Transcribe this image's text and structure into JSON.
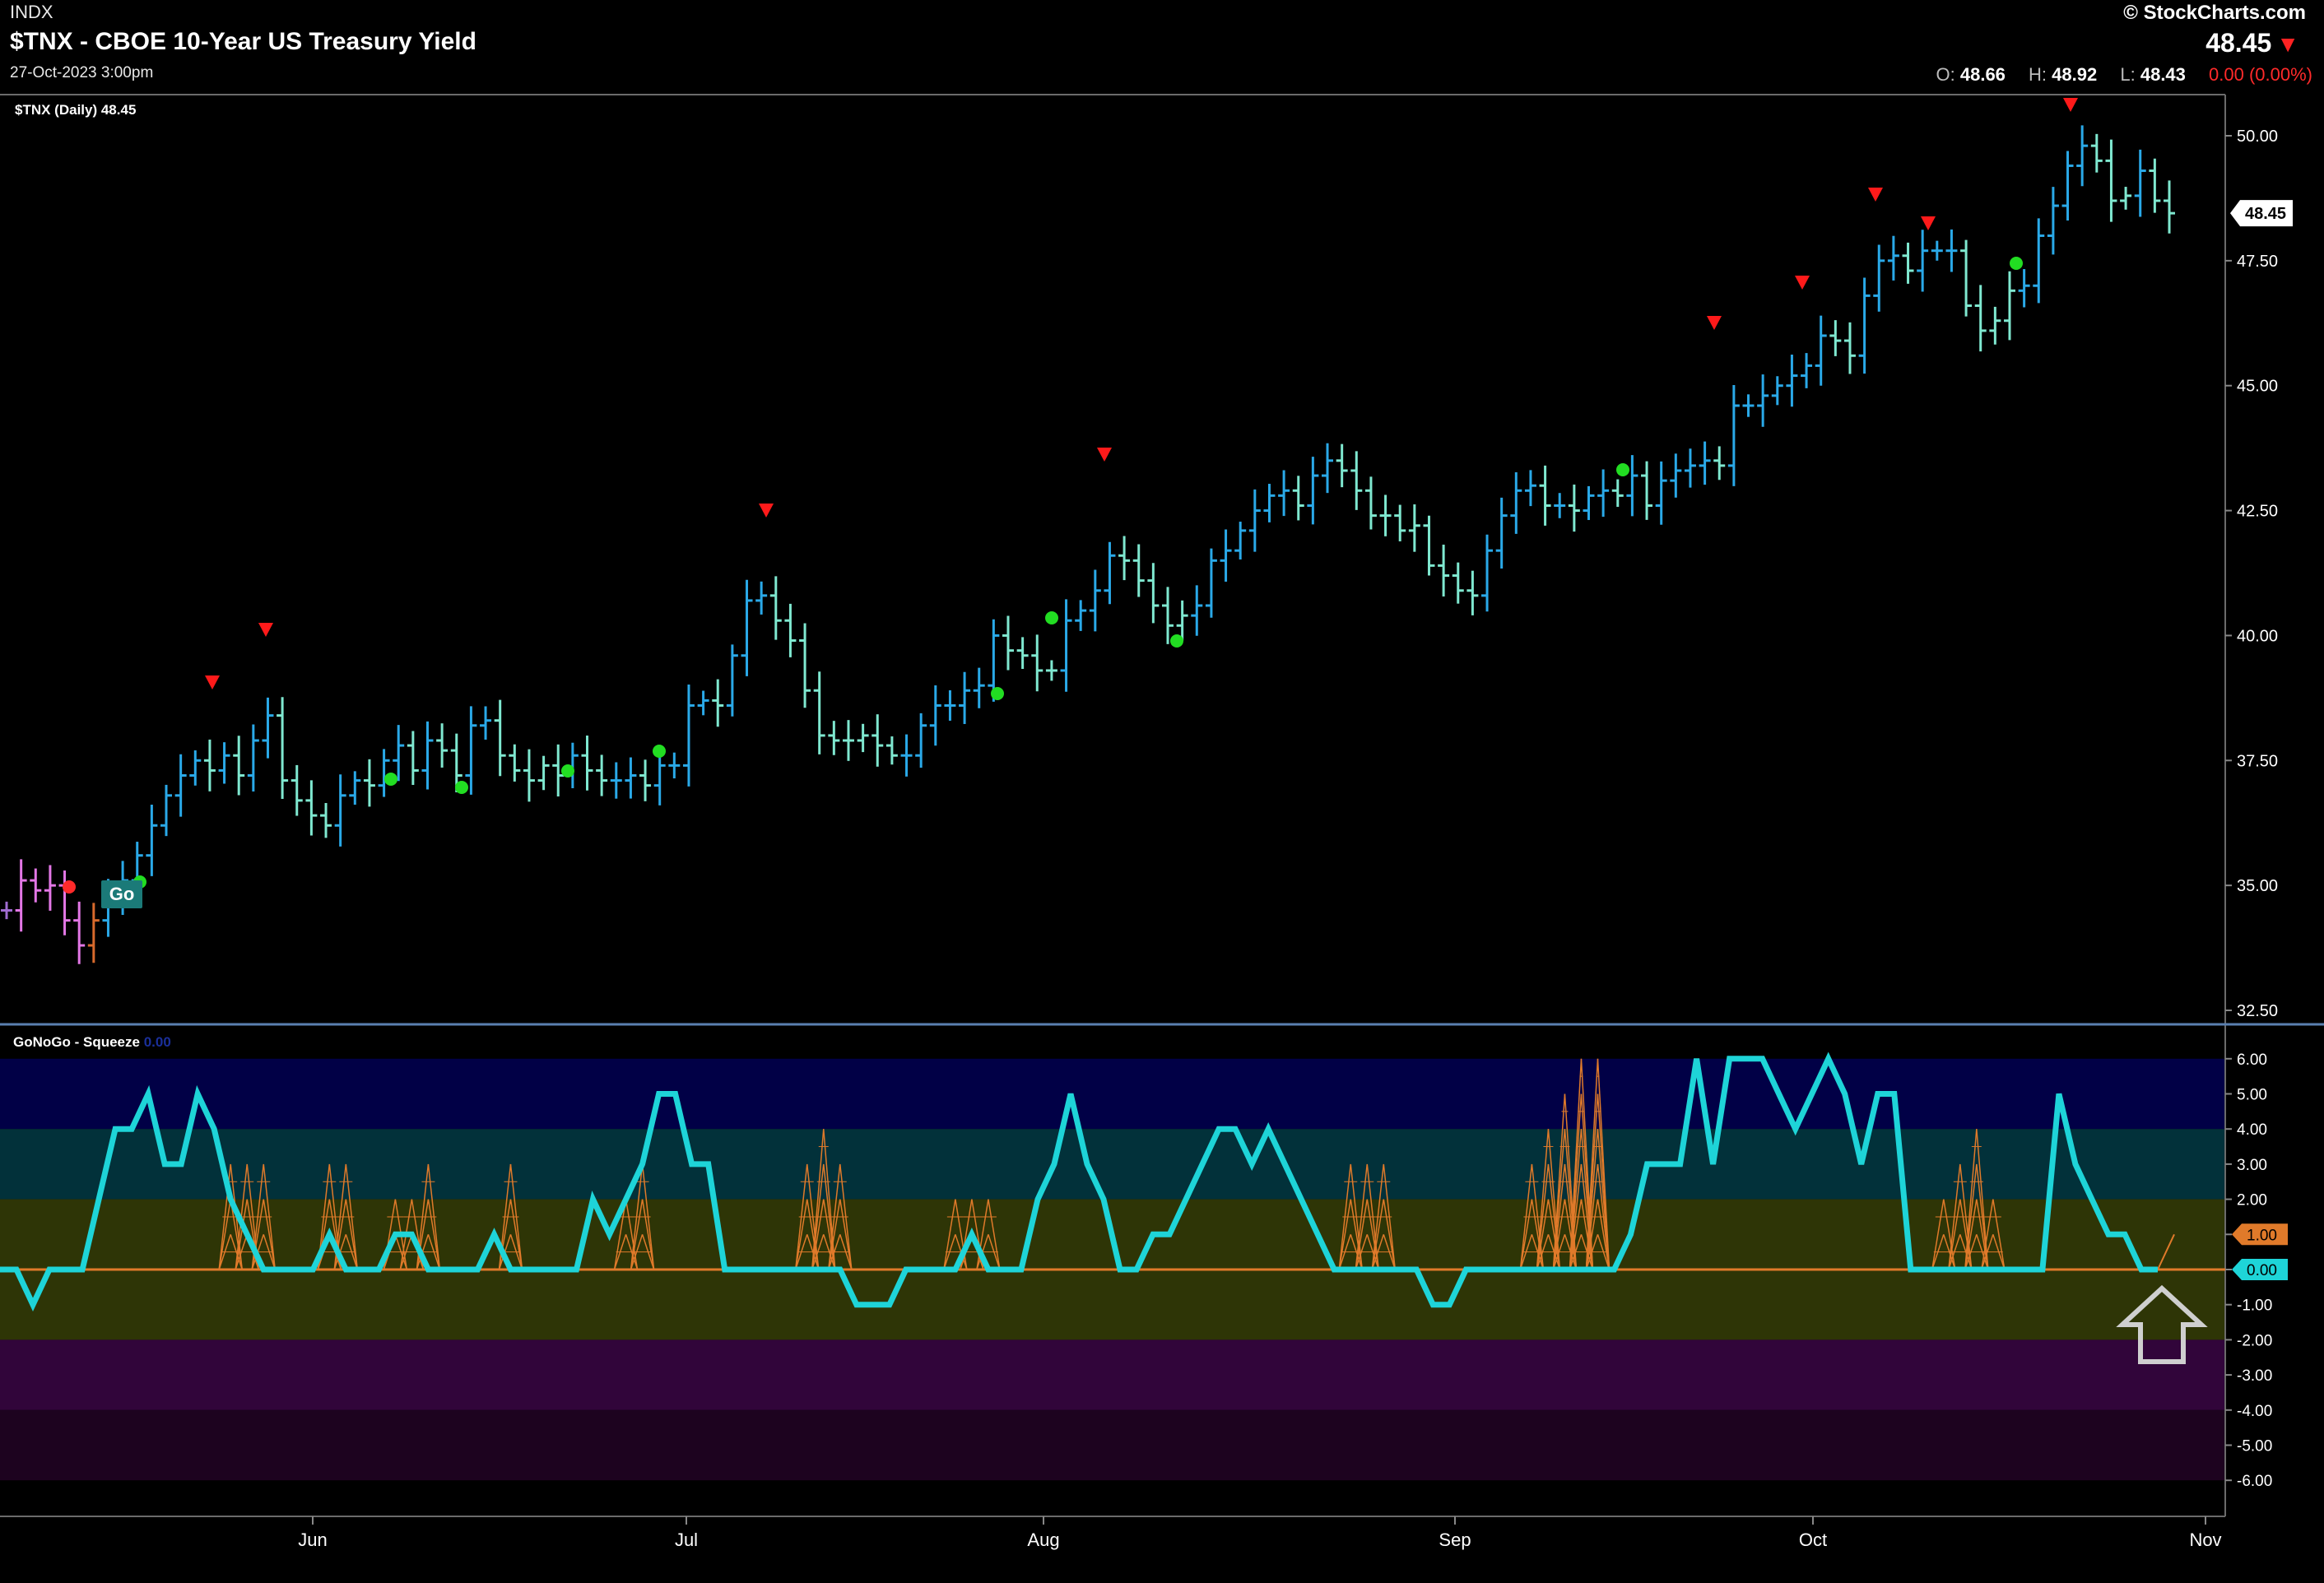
{
  "header": {
    "exchange": "INDX",
    "title": "$TNX - CBOE 10-Year US Treasury Yield",
    "datetime": "27-Oct-2023 3:00pm",
    "brand": "© StockCharts.com",
    "last_price": "48.45",
    "ohlc": {
      "o_label": "O:",
      "o": "48.66",
      "h_label": "H:",
      "h": "48.92",
      "l_label": "L:",
      "l": "48.43",
      "change": "0.00 (0.00%)"
    }
  },
  "price_panel": {
    "label": "$TNX (Daily) 48.45",
    "last_tag": "48.45",
    "go_badge": "Go",
    "colors": {
      "strong_go": "#2aa9e8",
      "weak_go": "#7fe8d0",
      "no_go": "#e377e6",
      "nogo_weak": "#a06cd0",
      "neutral": "#d86a2c",
      "down_triangle": "#ff1a1a",
      "go_dot": "#22dd22",
      "nogo_dot": "#ff2a2a"
    }
  },
  "oscillator_panel": {
    "label": "GoNoGo - Squeeze",
    "label_suffix": "0.00",
    "tag_orange": "1.00",
    "tag_cyan": "0.00",
    "colors": {
      "line": "#1ed4d8",
      "squeeze": "#e07a2a",
      "zero_line": "#e07a2a"
    }
  },
  "x_axis": {
    "labels": [
      "Jun",
      "Jul",
      "Aug",
      "Sep",
      "Oct",
      "Nov"
    ]
  },
  "chart_data": [
    {
      "type": "ohlc",
      "title": "$TNX - CBOE 10-Year US Treasury Yield",
      "series_name": "$TNX (Daily)",
      "ylim": [
        32.5,
        50.75
      ],
      "y_ticks": [
        "32.50",
        "35.00",
        "37.50",
        "40.00",
        "42.50",
        "45.00",
        "47.50",
        "50.00"
      ],
      "x_ticks": [
        "Jun",
        "Jul",
        "Aug",
        "Sep",
        "Oct",
        "Nov"
      ],
      "bars_close": [
        34.5,
        35.1,
        34.9,
        35.0,
        34.3,
        33.8,
        34.3,
        34.8,
        35.1,
        35.6,
        36.2,
        36.8,
        37.2,
        37.5,
        37.3,
        37.6,
        37.2,
        37.9,
        38.4,
        37.1,
        36.7,
        36.4,
        36.2,
        36.8,
        37.1,
        37.0,
        37.5,
        37.8,
        37.3,
        37.9,
        37.7,
        37.2,
        38.2,
        38.3,
        37.6,
        37.3,
        37.1,
        37.4,
        37.2,
        37.6,
        37.3,
        37.1,
        37.1,
        37.2,
        37.0,
        37.4,
        37.4,
        38.6,
        38.7,
        38.6,
        39.6,
        40.7,
        40.8,
        40.3,
        39.9,
        38.9,
        38.0,
        37.9,
        37.9,
        38.0,
        37.8,
        37.6,
        37.6,
        38.2,
        38.6,
        38.6,
        38.9,
        39.0,
        40.0,
        39.7,
        39.6,
        39.3,
        39.3,
        40.3,
        40.5,
        40.9,
        41.6,
        41.5,
        41.1,
        40.6,
        40.2,
        40.4,
        40.6,
        41.5,
        41.7,
        42.1,
        42.5,
        42.8,
        42.9,
        42.6,
        43.2,
        43.5,
        43.3,
        42.9,
        42.4,
        42.4,
        42.1,
        42.2,
        41.4,
        41.2,
        40.9,
        40.8,
        41.7,
        42.4,
        42.9,
        43.0,
        42.6,
        42.6,
        42.5,
        42.8,
        42.9,
        42.8,
        43.2,
        42.6,
        43.1,
        43.3,
        43.4,
        43.5,
        43.4,
        44.6,
        44.6,
        44.8,
        45.0,
        45.2,
        45.4,
        46.0,
        45.9,
        45.6,
        46.8,
        47.5,
        47.6,
        47.3,
        47.7,
        47.7,
        47.7,
        46.6,
        46.1,
        46.3,
        46.9,
        47.0,
        48.0,
        48.6,
        49.4,
        49.8,
        49.5,
        48.7,
        48.8,
        49.3,
        48.7,
        48.45
      ],
      "go_dots": [
        "May-26",
        "Jun-07",
        "Jun-14",
        "Jun-22",
        "Jun-28",
        "Jul-25",
        "Aug-01",
        "Aug-09",
        "Sep-15",
        "Oct-18"
      ],
      "down_triangles": [
        "May-19",
        "May-26",
        "Jul-05",
        "Aug-04",
        "Sep-21",
        "Sep-27",
        "Oct-05",
        "Oct-10",
        "Oct-19"
      ]
    },
    {
      "type": "line",
      "title": "GoNoGo - Squeeze",
      "ylim": [
        -7,
        7
      ],
      "y_ticks": [
        "6.00",
        "5.00",
        "4.00",
        "3.00",
        "2.00",
        "1.00",
        "0.00",
        "-1.00",
        "-2.00",
        "-3.00",
        "-4.00",
        "-5.00",
        "-6.00"
      ],
      "oscillator": [
        0,
        0,
        -1,
        0,
        0,
        0,
        2,
        4,
        4,
        5,
        3,
        3,
        5,
        4,
        2,
        1,
        0,
        0,
        0,
        0,
        1,
        0,
        0,
        0,
        1,
        1,
        0,
        0,
        0,
        0,
        1,
        0,
        0,
        0,
        0,
        0,
        2,
        1,
        2,
        3,
        5,
        5,
        3,
        3,
        0,
        0,
        0,
        0,
        0,
        0,
        0,
        0,
        -1,
        -1,
        -1,
        0,
        0,
        0,
        0,
        1,
        0,
        0,
        0,
        2,
        3,
        5,
        3,
        2,
        0,
        0,
        1,
        1,
        2,
        3,
        4,
        4,
        3,
        4,
        3,
        2,
        1,
        0,
        0,
        0,
        0,
        0,
        0,
        -1,
        -1,
        0,
        0,
        0,
        0,
        0,
        0,
        0,
        0,
        0,
        0,
        1,
        3,
        3,
        3,
        6,
        3,
        6,
        6,
        6,
        5,
        4,
        5,
        6,
        5,
        3,
        5,
        5,
        0,
        0,
        0,
        0,
        0,
        0,
        0,
        0,
        0,
        5,
        3,
        2,
        1,
        1,
        0,
        0
      ],
      "squeeze_max": [
        0,
        0,
        0,
        0,
        0,
        0,
        0,
        0,
        0,
        0,
        0,
        0,
        0,
        0,
        3,
        3,
        3,
        0,
        0,
        0,
        3,
        3,
        0,
        0,
        2,
        2,
        3,
        0,
        0,
        0,
        0,
        3,
        0,
        0,
        0,
        0,
        0,
        0,
        2,
        3,
        0,
        0,
        0,
        0,
        0,
        0,
        0,
        0,
        0,
        3,
        4,
        3,
        0,
        0,
        0,
        0,
        0,
        0,
        2,
        2,
        2,
        0,
        0,
        0,
        0,
        0,
        0,
        0,
        0,
        0,
        0,
        0,
        0,
        0,
        0,
        0,
        0,
        0,
        0,
        0,
        0,
        0,
        3,
        3,
        3,
        0,
        0,
        0,
        0,
        0,
        0,
        0,
        0,
        3,
        4,
        5,
        6,
        6,
        0,
        0,
        0,
        0,
        0,
        0,
        0,
        0,
        0,
        0,
        0,
        0,
        0,
        0,
        0,
        0,
        0,
        0,
        0,
        0,
        2,
        3,
        4,
        2,
        0,
        0,
        0,
        0,
        0,
        0,
        0,
        0
      ]
    }
  ]
}
